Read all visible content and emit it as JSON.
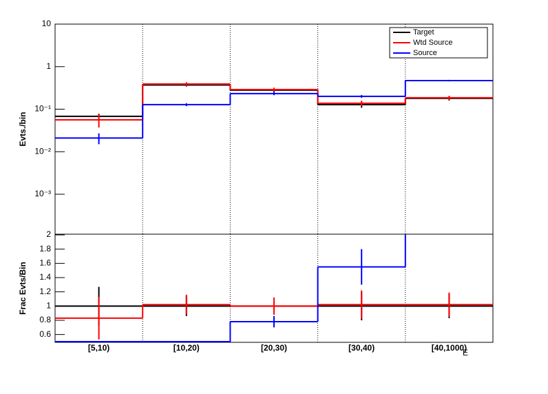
{
  "chart_data": [
    {
      "type": "step",
      "y_label": "Evts./bin",
      "log_y": true,
      "ylim": [
        0.000115,
        10
      ],
      "yticks": [
        {
          "value": 0.001,
          "label": "10⁻³"
        },
        {
          "value": 0.01,
          "label": "10⁻²"
        },
        {
          "value": 0.1,
          "label": "10⁻¹"
        },
        1,
        10
      ],
      "legend": "top-right",
      "bin_grid": true,
      "series": [
        {
          "name": "Target",
          "color": "#000000",
          "values": [
            0.068,
            0.37,
            0.28,
            0.128,
            0.18
          ],
          "errors": [
            0.01,
            0.03,
            0.03,
            0.02,
            0.02
          ]
        },
        {
          "name": "Wtd Source",
          "color": "#ff0000",
          "values": [
            0.056,
            0.39,
            0.29,
            0.138,
            0.186
          ],
          "errors": [
            0.019,
            0.04,
            0.03,
            0.02,
            0.02
          ]
        },
        {
          "name": "Source",
          "color": "#0000ff",
          "values": [
            0.021,
            0.128,
            0.233,
            0.2,
            0.47
          ],
          "errors": [
            0.006,
            0.01,
            0.02,
            0.015,
            0.02
          ]
        }
      ]
    },
    {
      "type": "step",
      "y_label": "Frac Evts/Bin",
      "log_y": false,
      "ylim": [
        0.49,
        2.01
      ],
      "yticks": [
        0.6,
        0.8,
        1,
        1.2,
        1.4,
        1.6,
        1.8,
        2
      ],
      "bin_grid": true,
      "x_label": "E",
      "categories": [
        "[5,10)",
        "[10,20)",
        "[20,30)",
        "[30,40)",
        "[40,1000)"
      ],
      "series": [
        {
          "color": "#000000",
          "values": [
            1,
            1,
            1,
            1,
            1
          ],
          "errors": [
            0.27,
            0.14,
            0.12,
            0.2,
            0.17
          ]
        },
        {
          "color": "#ff0000",
          "values": [
            0.83,
            1.02,
            1.0,
            1.02,
            1.02
          ],
          "errors": [
            0.3,
            0.14,
            0.12,
            0.2,
            0.17
          ]
        },
        {
          "color": "#0000ff",
          "values": [
            0.5,
            0.5,
            0.78,
            1.55,
            2.02
          ],
          "errors": [
            0,
            0,
            0.08,
            0.25,
            0
          ]
        }
      ]
    }
  ]
}
